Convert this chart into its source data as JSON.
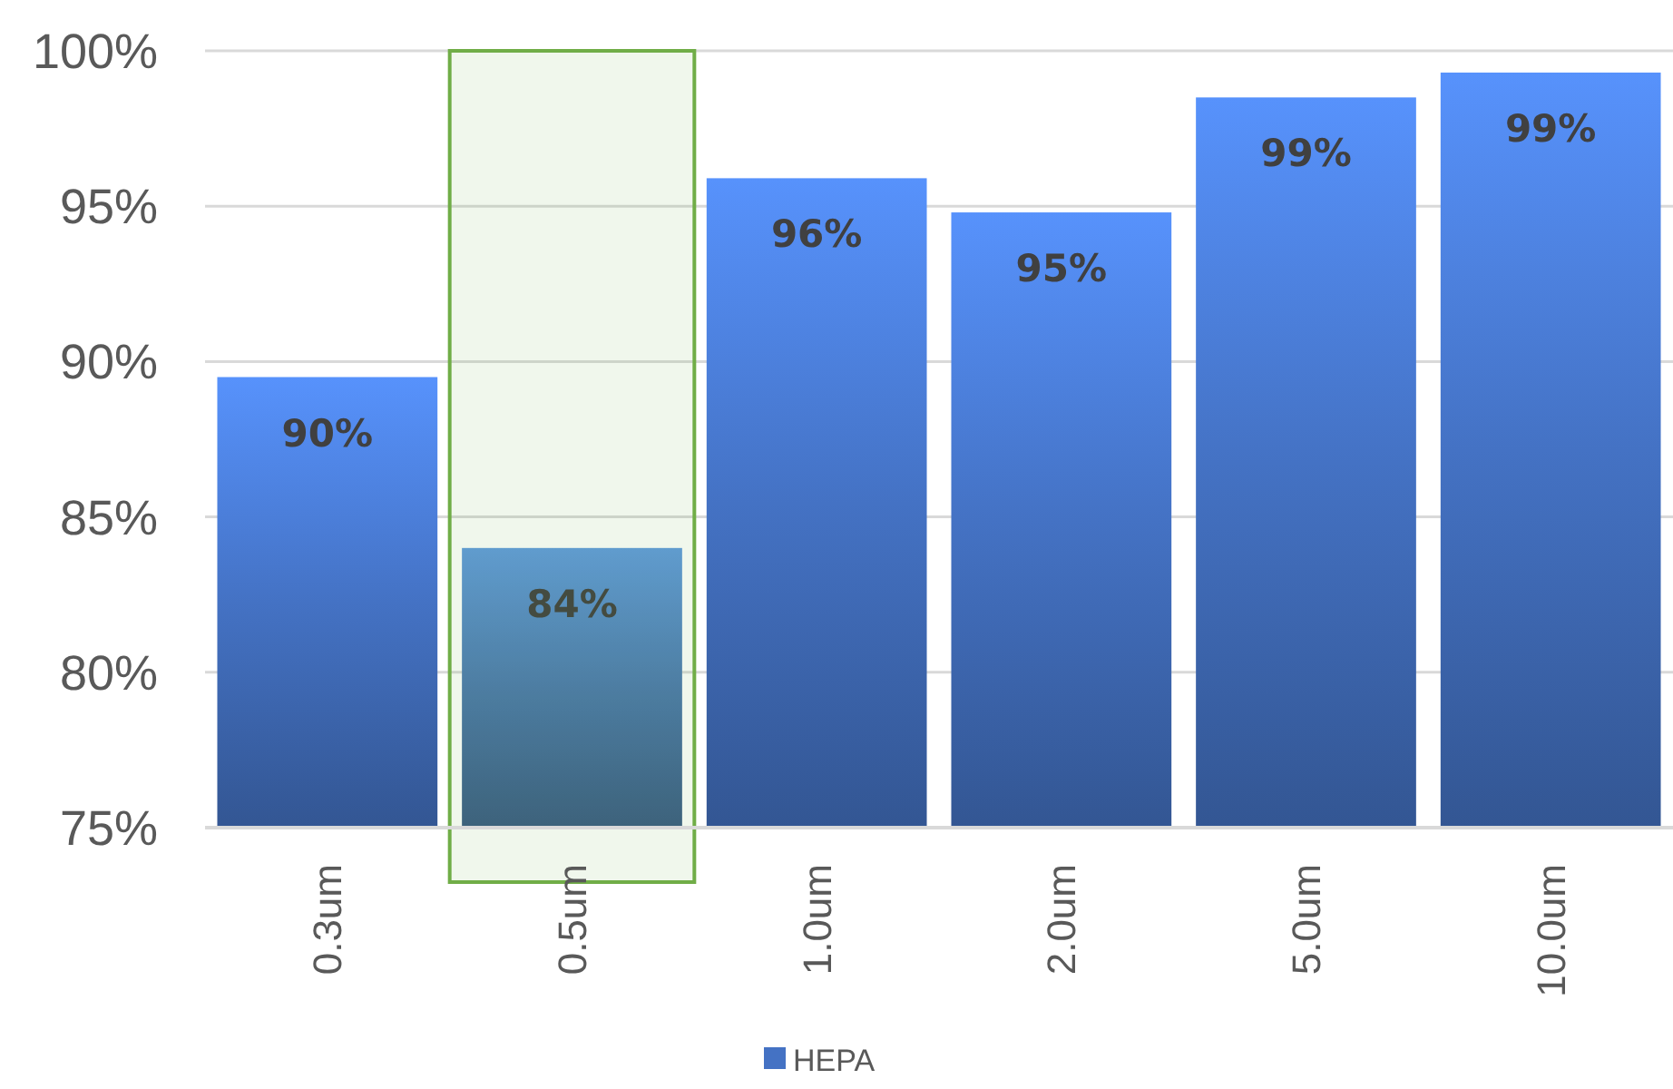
{
  "chart_data": {
    "type": "bar",
    "categories": [
      "0.3um",
      "0.5um",
      "1.0um",
      "2.0um",
      "5.0um",
      "10.0um"
    ],
    "series": [
      {
        "name": "HEPA",
        "color": "#4472c4",
        "colors": [
          "#4472c4",
          "#4a78ad",
          "#4472c4",
          "#4472c4",
          "#4472c4",
          "#4472c4"
        ],
        "values": [
          89.5,
          84.0,
          95.9,
          94.8,
          98.5,
          99.3
        ],
        "value_labels": [
          "90%",
          "84%",
          "96%",
          "95%",
          "99%",
          "99%"
        ]
      }
    ],
    "ylim": [
      75,
      100
    ],
    "yticks": [
      {
        "value": 75,
        "label": "75%"
      },
      {
        "value": 80,
        "label": "80%"
      },
      {
        "value": 85,
        "label": "85%"
      },
      {
        "value": 90,
        "label": "90%"
      },
      {
        "value": 95,
        "label": "95%"
      },
      {
        "value": 100,
        "label": "100%"
      }
    ],
    "grid": "y",
    "legend": "bottom",
    "bands": [
      {
        "axis": "x",
        "from": "0.5um",
        "to": "0.5um",
        "color": "#70ad47"
      }
    ]
  }
}
